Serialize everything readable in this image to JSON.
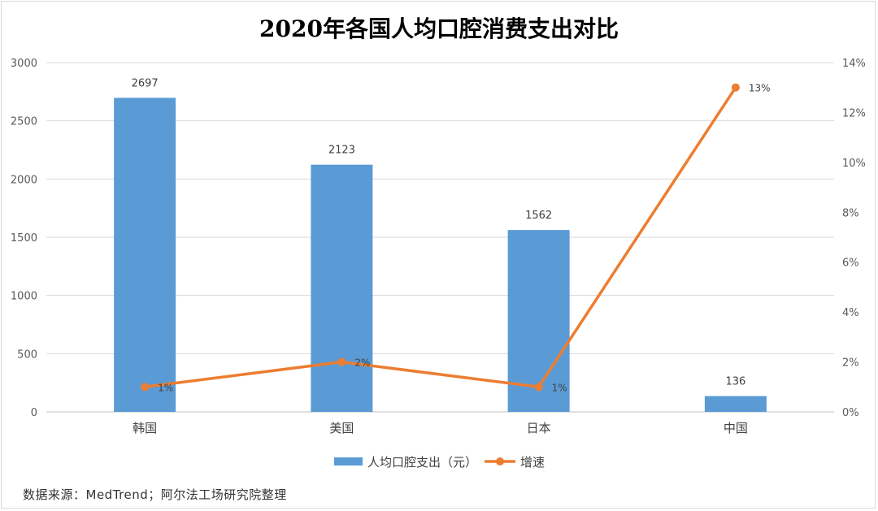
{
  "title": "2020年各国人均口腔消费支出对比",
  "source": "数据来源：MedTrend；阿尔法工场研究院整理",
  "chart_data": {
    "type": "bar",
    "title": "2020年各国人均口腔消费支出对比",
    "categories": [
      "韩国",
      "美国",
      "日本",
      "中国"
    ],
    "series": [
      {
        "name": "人均口腔支出（元）",
        "type": "bar",
        "axis": "left",
        "values": [
          2697,
          2123,
          1562,
          136
        ],
        "labels": [
          "2697",
          "2123",
          "1562",
          "136"
        ],
        "color": "#5b9bd5"
      },
      {
        "name": "增速",
        "type": "line",
        "axis": "right",
        "values": [
          1,
          2,
          1,
          13
        ],
        "labels": [
          "1%",
          "2%",
          "1%",
          "13%"
        ],
        "color": "#ed7d31"
      }
    ],
    "y_left": {
      "min": 0,
      "max": 3000,
      "ticks": [
        "0",
        "500",
        "1000",
        "1500",
        "2000",
        "2500",
        "3000"
      ]
    },
    "y_right": {
      "min": 0,
      "max": 14,
      "ticks": [
        "0%",
        "2%",
        "4%",
        "6%",
        "8%",
        "10%",
        "12%",
        "14%"
      ]
    },
    "grid": true,
    "legend_position": "bottom"
  }
}
